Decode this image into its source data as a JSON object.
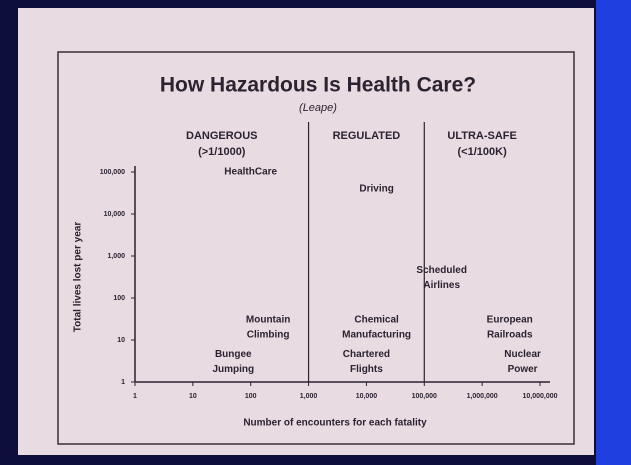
{
  "chart_data": {
    "type": "scatter",
    "title": "How Hazardous Is Health Care?",
    "subtitle": "(Leape)",
    "x_label": "Number of encounters for each fatality",
    "y_label": "Total lives lost per year",
    "log_x": true,
    "log_y": true,
    "xlim": [
      1,
      10000000
    ],
    "xticks": [
      1,
      10,
      100,
      {
        "value": 1000,
        "label": "1,000"
      },
      {
        "value": 10000,
        "label": "10,000"
      },
      {
        "value": 100000,
        "label": "100,000"
      },
      {
        "value": 1000000,
        "label": "1,000,000"
      },
      {
        "value": 10000000,
        "label": "10,000,000"
      }
    ],
    "ylim": [
      1,
      100000
    ],
    "yticks": [
      1,
      10,
      100,
      {
        "value": 1000,
        "label": "1,000"
      },
      {
        "value": 10000,
        "label": "10,000"
      },
      {
        "value": 100000,
        "label": "100,000"
      }
    ],
    "zones": [
      {
        "name": [
          "DANGEROUS",
          "(>1/1000)"
        ],
        "from": 1,
        "to": 1000
      },
      {
        "name": [
          "REGULATED"
        ],
        "from": 1000,
        "to": 100000
      },
      {
        "name": [
          "ULTRA-SAFE",
          "(<1/100K)"
        ],
        "from": 100000,
        "to": 10000000
      }
    ],
    "points": [
      {
        "label": [
          "HealthCare"
        ],
        "x": 100,
        "y": 100000
      },
      {
        "label": [
          "Driving"
        ],
        "x": 15000,
        "y": 40000
      },
      {
        "label": [
          "Scheduled",
          "Airlines"
        ],
        "x": 200000,
        "y": 300
      },
      {
        "label": [
          "Mountain",
          "Climbing"
        ],
        "x": 200,
        "y": 20
      },
      {
        "label": [
          "Chemical",
          "Manufacturing"
        ],
        "x": 15000,
        "y": 20
      },
      {
        "label": [
          "Bungee",
          "Jumping"
        ],
        "x": 50,
        "y": 3
      },
      {
        "label": [
          "Chartered",
          "Flights"
        ],
        "x": 10000,
        "y": 3
      },
      {
        "label": [
          "European",
          "Railroads"
        ],
        "x": 3000000,
        "y": 20
      },
      {
        "label": [
          "Nuclear",
          "Power"
        ],
        "x": 5000000,
        "y": 3
      }
    ]
  }
}
